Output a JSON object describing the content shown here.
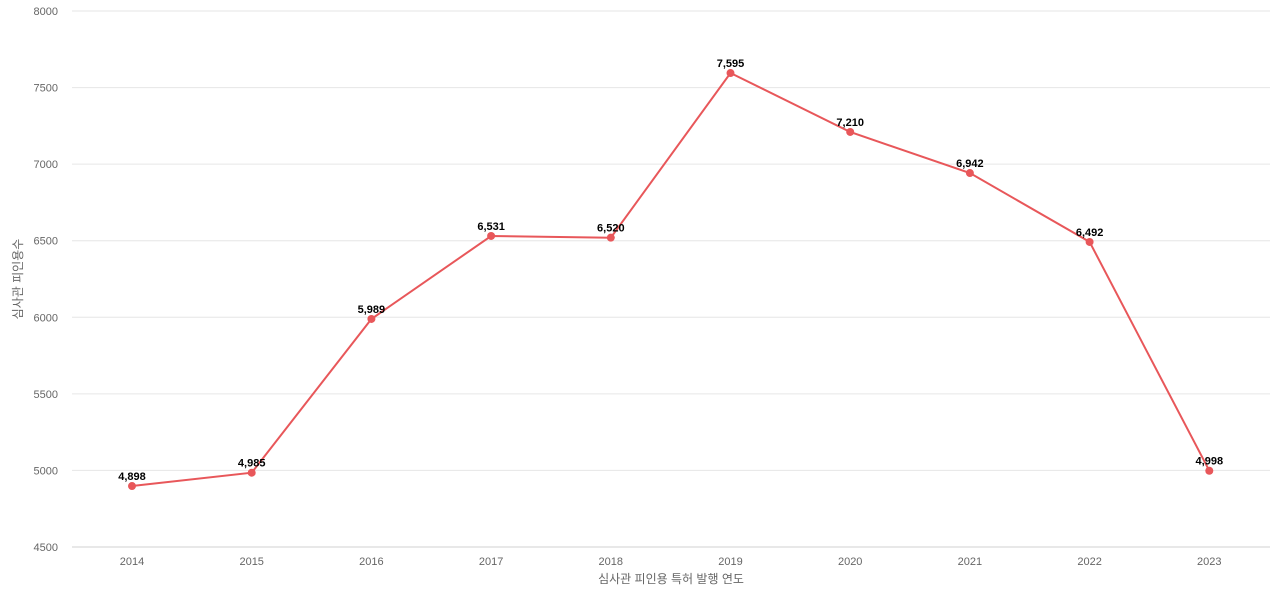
{
  "chart_data": {
    "type": "line",
    "title": "",
    "xlabel": "심사관 피인용 특허 발행 연도",
    "ylabel": "심사관 피인용수",
    "categories": [
      "2014",
      "2015",
      "2016",
      "2017",
      "2018",
      "2019",
      "2020",
      "2021",
      "2022",
      "2023"
    ],
    "series": [
      {
        "values": [
          4898,
          4985,
          5989,
          6531,
          6520,
          7595,
          7210,
          6942,
          6492,
          4998
        ],
        "data_labels": [
          "4,898",
          "4,985",
          "5,989",
          "6,531",
          "6,520",
          "7,595",
          "7,210",
          "6,942",
          "6,492",
          "4,998"
        ],
        "color": "#e8575a"
      }
    ],
    "ylim": [
      4500,
      8000
    ],
    "yticks": [
      "4500",
      "5000",
      "5500",
      "6000",
      "6500",
      "7000",
      "7500",
      "8000"
    ],
    "grid": true,
    "legend": "none"
  }
}
